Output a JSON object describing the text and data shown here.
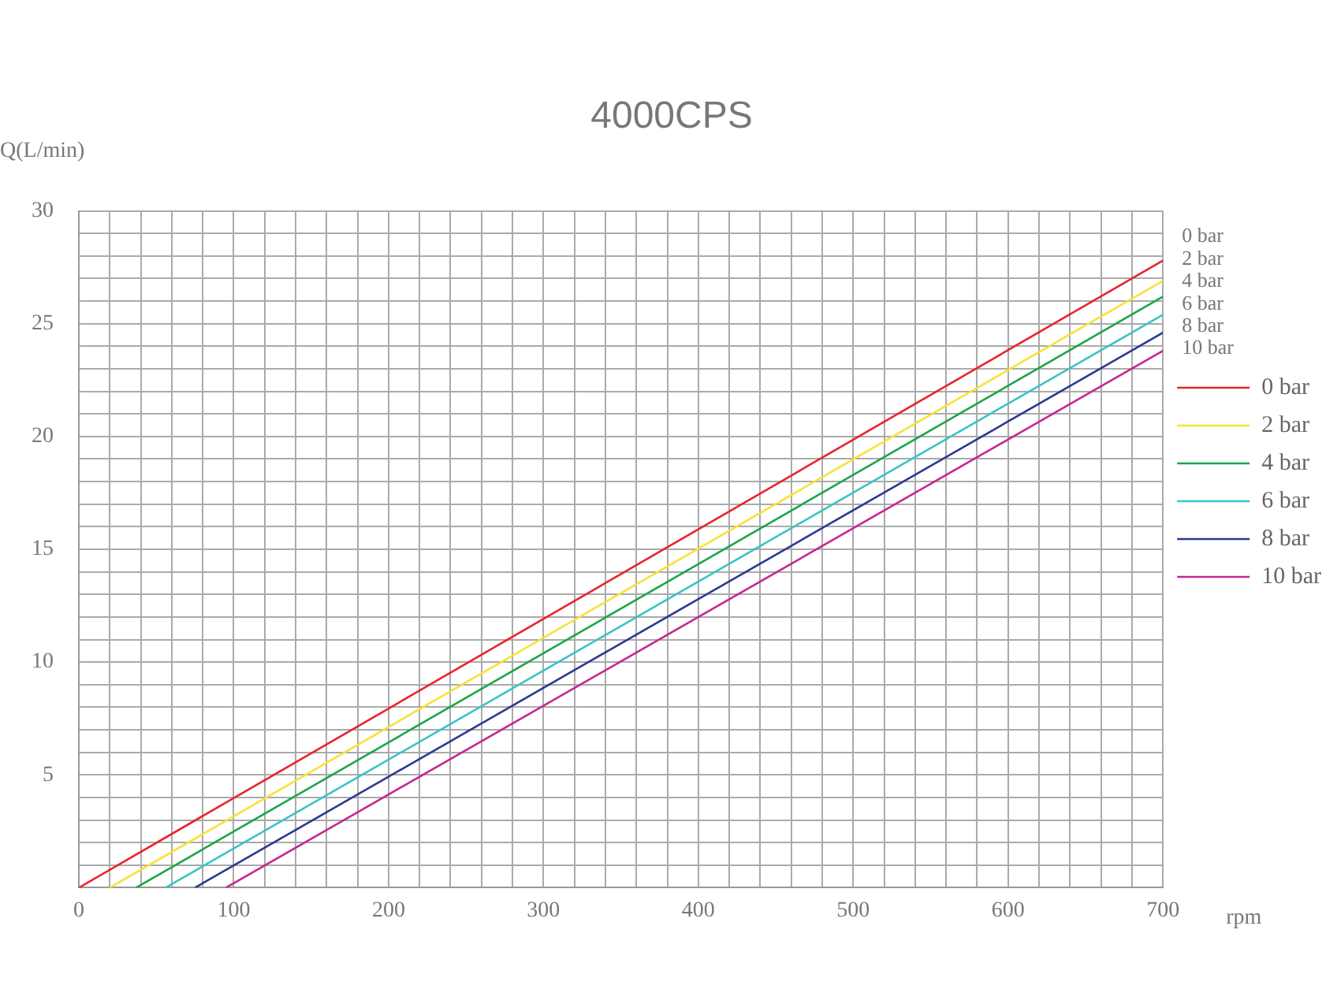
{
  "chart_data": {
    "type": "line",
    "title": "4000CPS",
    "xlabel": "rpm",
    "ylabel": "Q(L/min)",
    "xlim": [
      0,
      700
    ],
    "ylim": [
      0,
      30
    ],
    "xticks": [
      0,
      {
        "value": 20,
        "label": null
      },
      {
        "value": 40,
        "label": null
      },
      {
        "value": 60,
        "label": null
      },
      {
        "value": 80,
        "label": null
      },
      100,
      {
        "value": 120,
        "label": null
      },
      {
        "value": 140,
        "label": null
      },
      {
        "value": 160,
        "label": null
      },
      {
        "value": 180,
        "label": null
      },
      200,
      {
        "value": 220,
        "label": null
      },
      {
        "value": 240,
        "label": null
      },
      {
        "value": 260,
        "label": null
      },
      {
        "value": 280,
        "label": null
      },
      300,
      {
        "value": 320,
        "label": null
      },
      {
        "value": 340,
        "label": null
      },
      {
        "value": 360,
        "label": null
      },
      {
        "value": 380,
        "label": null
      },
      400,
      {
        "value": 420,
        "label": null
      },
      {
        "value": 440,
        "label": null
      },
      {
        "value": 460,
        "label": null
      },
      {
        "value": 480,
        "label": null
      },
      500,
      {
        "value": 520,
        "label": null
      },
      {
        "value": 540,
        "label": null
      },
      {
        "value": 560,
        "label": null
      },
      {
        "value": 580,
        "label": null
      },
      600,
      {
        "value": 620,
        "label": null
      },
      {
        "value": 640,
        "label": null
      },
      {
        "value": 660,
        "label": null
      },
      {
        "value": 680,
        "label": null
      },
      700
    ],
    "yticks": [
      {
        "value": 0,
        "label": null
      },
      {
        "value": 1,
        "label": null
      },
      {
        "value": 2,
        "label": null
      },
      {
        "value": 3,
        "label": null
      },
      {
        "value": 4,
        "label": null
      },
      5,
      {
        "value": 6,
        "label": null
      },
      {
        "value": 7,
        "label": null
      },
      {
        "value": 8,
        "label": null
      },
      {
        "value": 9,
        "label": null
      },
      10,
      {
        "value": 11,
        "label": null
      },
      {
        "value": 12,
        "label": null
      },
      {
        "value": 13,
        "label": null
      },
      {
        "value": 14,
        "label": null
      },
      15,
      {
        "value": 16,
        "label": null
      },
      {
        "value": 17,
        "label": null
      },
      {
        "value": 18,
        "label": null
      },
      {
        "value": 19,
        "label": null
      },
      20,
      {
        "value": 21,
        "label": null
      },
      {
        "value": 22,
        "label": null
      },
      {
        "value": 23,
        "label": null
      },
      {
        "value": 24,
        "label": null
      },
      25,
      {
        "value": 26,
        "label": null
      },
      {
        "value": 27,
        "label": null
      },
      {
        "value": 28,
        "label": null
      },
      {
        "value": 29,
        "label": null
      },
      30
    ],
    "grid": true,
    "legend": "right",
    "marker": "none",
    "line_style": "solid",
    "series": [
      {
        "name": "0 bar",
        "color": "#e8242c",
        "x": [
          0,
          700
        ],
        "values": [
          0,
          27.8
        ]
      },
      {
        "name": "2 bar",
        "color": "#f5e23a",
        "x": [
          20,
          700
        ],
        "values": [
          0,
          26.9
        ]
      },
      {
        "name": "4 bar",
        "color": "#1aa64a",
        "x": [
          37,
          700
        ],
        "values": [
          0,
          26.2
        ]
      },
      {
        "name": "6 bar",
        "color": "#3cc3c3",
        "x": [
          56,
          700
        ],
        "values": [
          0,
          25.4
        ]
      },
      {
        "name": "8 bar",
        "color": "#2b3990",
        "x": [
          75,
          700
        ],
        "values": [
          0,
          24.6
        ]
      },
      {
        "name": "10 bar",
        "color": "#c4288f",
        "x": [
          95,
          700
        ],
        "values": [
          0,
          23.8
        ]
      }
    ]
  }
}
